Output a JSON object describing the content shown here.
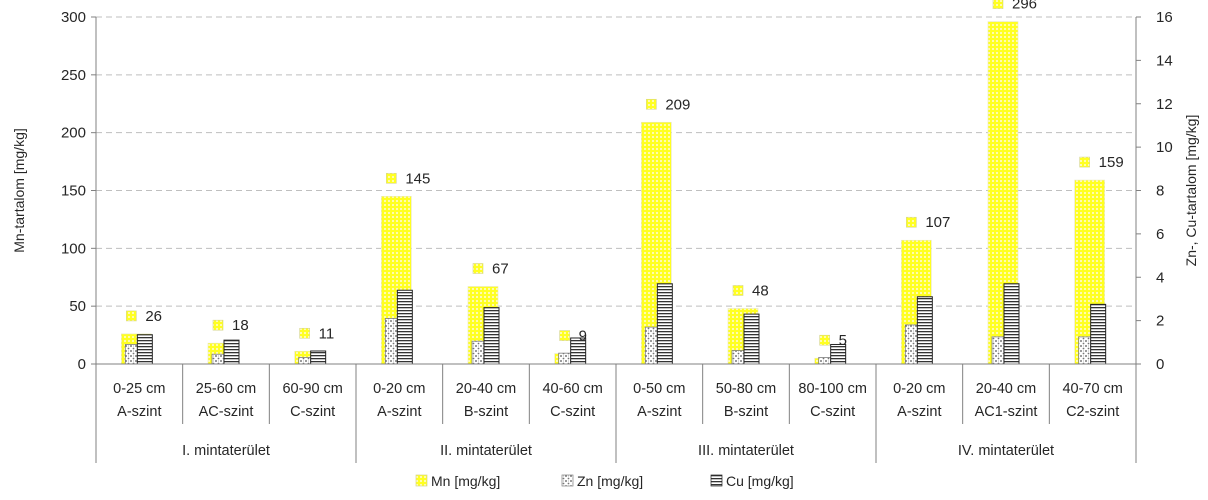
{
  "chart_data": {
    "type": "bar",
    "groups": [
      {
        "label": "I. mintaterület",
        "categories": [
          {
            "line1": "0-25 cm",
            "line2": "A-szint"
          },
          {
            "line1": "25-60 cm",
            "line2": "AC-szint"
          },
          {
            "line1": "60-90 cm",
            "line2": "C-szint"
          }
        ]
      },
      {
        "label": "II. mintaterület",
        "categories": [
          {
            "line1": "0-20 cm",
            "line2": "A-szint"
          },
          {
            "line1": "20-40 cm",
            "line2": "B-szint"
          },
          {
            "line1": "40-60 cm",
            "line2": "C-szint"
          }
        ]
      },
      {
        "label": "III. mintaterület",
        "categories": [
          {
            "line1": "0-50 cm",
            "line2": "A-szint"
          },
          {
            "line1": "50-80 cm",
            "line2": "B-szint"
          },
          {
            "line1": "80-100 cm",
            "line2": "C-szint"
          }
        ]
      },
      {
        "label": "IV. mintaterület",
        "categories": [
          {
            "line1": "0-20 cm",
            "line2": "A-szint"
          },
          {
            "line1": "20-40 cm",
            "line2": "AC1-szint"
          },
          {
            "line1": "40-70 cm",
            "line2": "C2-szint"
          }
        ]
      }
    ],
    "series": [
      {
        "name": "Mn [mg/kg]",
        "axis": "left",
        "color": "#ffff33",
        "pattern": "yellow-dots",
        "values": [
          26,
          18,
          11,
          145,
          67,
          9,
          209,
          48,
          5,
          107,
          296,
          159
        ]
      },
      {
        "name": "Zn [mg/kg]",
        "axis": "right",
        "color": "#7f7f7f",
        "pattern": "stipple",
        "values": [
          0.9,
          0.45,
          0.3,
          2.1,
          1.05,
          0.5,
          1.7,
          0.62,
          0.3,
          1.8,
          1.25,
          1.25
        ]
      },
      {
        "name": "Cu [mg/kg]",
        "axis": "right",
        "color": "#404040",
        "pattern": "horizontal-lines",
        "values": [
          1.35,
          1.1,
          0.6,
          3.4,
          2.6,
          1.2,
          3.7,
          2.3,
          0.9,
          3.1,
          3.7,
          2.75
        ]
      }
    ],
    "data_labels": [
      "26",
      "18",
      "11",
      "145",
      "67",
      "9",
      "209",
      "48",
      "5",
      "107",
      "296",
      "159"
    ],
    "ylabel": "Mn-tartalom [mg/kg]",
    "y2label": "Zn-, Cu-tartalom [mg/kg]",
    "ylim": [
      0,
      300
    ],
    "y2lim": [
      0,
      16
    ],
    "yticks": [
      "0",
      "50",
      "100",
      "150",
      "200",
      "250",
      "300"
    ],
    "y2ticks": [
      "0",
      "2",
      "4",
      "6",
      "8",
      "10",
      "12",
      "14",
      "16"
    ],
    "grid": true,
    "legend_position": "bottom"
  }
}
